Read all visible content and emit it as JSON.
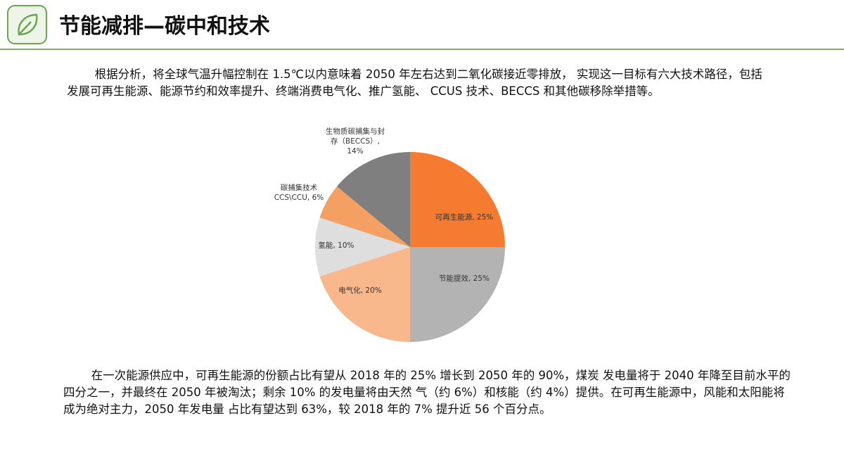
{
  "header": {
    "title": "节能减排—碳中和技术"
  },
  "paragraphs": [
    "根据分析，将全球气温升幅控制在 1.5℃以内意味着 2050 年左右达到二氧化碳接近零排放， 实现这一目标有六大技术路径，包括发展可再生能源、能源节约和效率提升、终端消费电气化、推广氢能、 CCUS 技术、BECCS 和其他碳移除举措等。",
    "在一次能源供应中，可再生能源的份额占比有望从 2018 年的 25% 增长到 2050 年的 90%，煤炭 发电量将于 2040 年降至目前水平的四分之一，并最终在 2050 年被淘汰；剩余 10% 的发电量将由天然 气（约 6%）和核能（约 4%）提供。在可再生能源中，风能和太阳能将成为绝对主力，2050 年发电量 占比有望达到 63%，较 2018 年的 7% 提升近 56 个百分点。"
  ],
  "chart_data": {
    "type": "pie",
    "values": [
      25,
      25,
      20,
      10,
      6,
      14
    ],
    "value_labels": [
      "可再生能源, 25%",
      "节能提效, 25%",
      "电气化, 20%",
      "氢能, 10%",
      "碳捕集技术\nCCS\\CCU, 6%",
      "生物质碳捕集与封\n存（BECCS）,\n14%"
    ],
    "colors": [
      "#f47b30",
      "#b3b3b3",
      "#f8b88c",
      "#dedede",
      "#f5a063",
      "#7f7f7f"
    ]
  }
}
